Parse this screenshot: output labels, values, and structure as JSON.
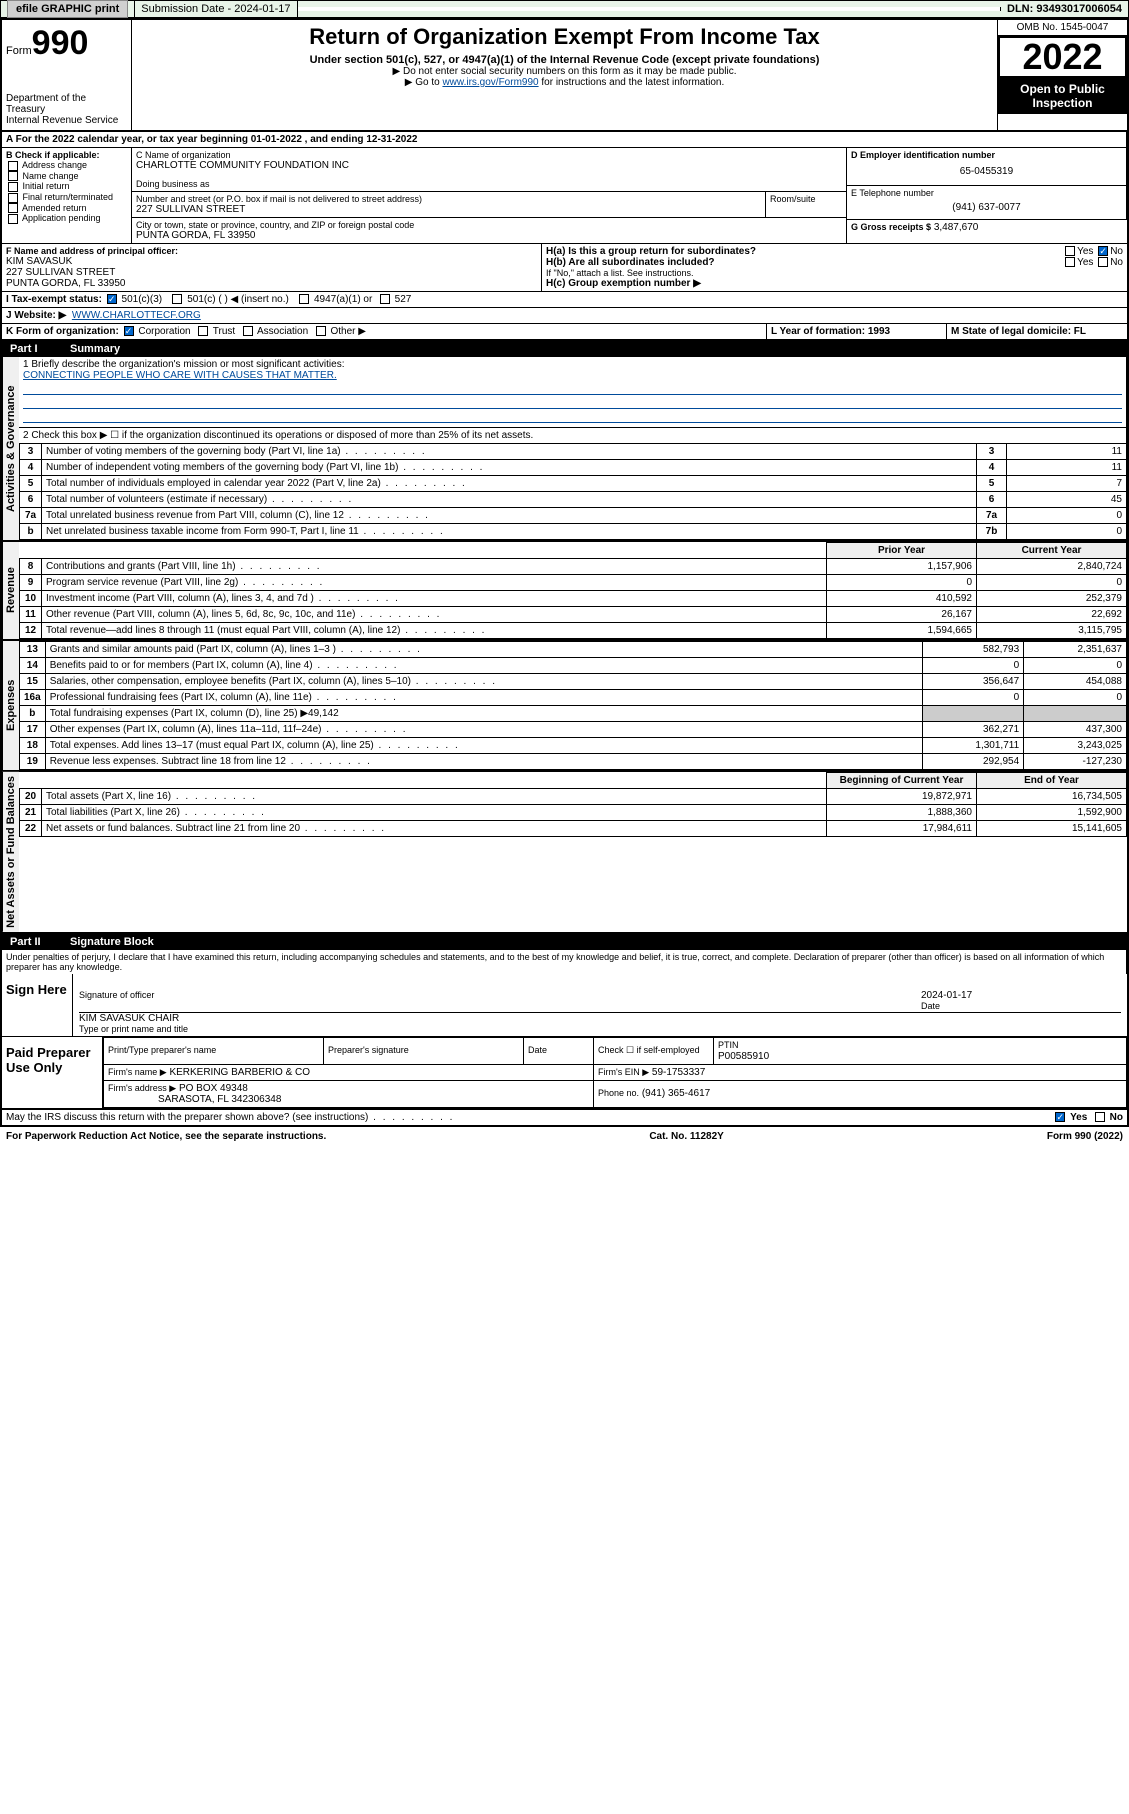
{
  "topbar": {
    "efile": "efile GRAPHIC print",
    "subdate_label": "Submission Date - 2024-01-17",
    "dln_label": "DLN: 93493017006054"
  },
  "header": {
    "form_prefix": "Form",
    "form_num": "990",
    "dept": "Department of the Treasury",
    "irs": "Internal Revenue Service",
    "title": "Return of Organization Exempt From Income Tax",
    "subtitle": "Under section 501(c), 527, or 4947(a)(1) of the Internal Revenue Code (except private foundations)",
    "note1": "▶ Do not enter social security numbers on this form as it may be made public.",
    "note2_pre": "▶ Go to ",
    "note2_link": "www.irs.gov/Form990",
    "note2_post": " for instructions and the latest information.",
    "omb": "OMB No. 1545-0047",
    "year": "2022",
    "inspect": "Open to Public Inspection"
  },
  "sectionA": {
    "a_line": "A For the 2022 calendar year, or tax year beginning 01-01-2022    , and ending 12-31-2022",
    "b_label": "B Check if applicable:",
    "b_items": [
      "Address change",
      "Name change",
      "Initial return",
      "Final return/terminated",
      "Amended return",
      "Application pending"
    ],
    "c_label": "C Name of organization",
    "c_name": "CHARLOTTE COMMUNITY FOUNDATION INC",
    "dba_label": "Doing business as",
    "addr_label": "Number and street (or P.O. box if mail is not delivered to street address)",
    "room_label": "Room/suite",
    "addr": "227 SULLIVAN STREET",
    "city_label": "City or town, state or province, country, and ZIP or foreign postal code",
    "city": "PUNTA GORDA, FL  33950",
    "d_label": "D Employer identification number",
    "d_ein": "65-0455319",
    "e_label": "E Telephone number",
    "e_phone": "(941) 637-0077",
    "g_label": "G Gross receipts $",
    "g_val": "3,487,670",
    "f_label": "F Name and address of principal officer:",
    "f_name": "KIM SAVASUK",
    "f_addr1": "227 SULLIVAN STREET",
    "f_addr2": "PUNTA GORDA, FL  33950",
    "ha_label": "H(a) Is this a group return for subordinates?",
    "ha_yes": "Yes",
    "ha_no": "No",
    "hb_label": "H(b) Are all subordinates included?",
    "hb_note": "If \"No,\" attach a list. See instructions.",
    "hc_label": "H(c) Group exemption number ▶",
    "i_label": "I    Tax-exempt status:",
    "i_501c3": "501(c)(3)",
    "i_501c": "501(c) (  ) ◀ (insert no.)",
    "i_4947": "4947(a)(1) or",
    "i_527": "527",
    "j_label": "J    Website: ▶",
    "j_site": "WWW.CHARLOTTECF.ORG",
    "k_label": "K Form of organization:",
    "k_corp": "Corporation",
    "k_trust": "Trust",
    "k_assoc": "Association",
    "k_other": "Other ▶",
    "l_label": "L Year of formation: 1993",
    "m_label": "M State of legal domicile: FL"
  },
  "part1": {
    "title": "Part I",
    "heading": "Summary",
    "l1_label": "1  Briefly describe the organization's mission or most significant activities:",
    "l1_text": "CONNECTING PEOPLE WHO CARE WITH CAUSES THAT MATTER.",
    "l2": "2   Check this box ▶ ☐  if the organization discontinued its operations or disposed of more than 25% of its net assets.",
    "rows_top": [
      {
        "n": "3",
        "desc": "Number of voting members of the governing body (Part VI, line 1a)",
        "box": "3",
        "val": "11"
      },
      {
        "n": "4",
        "desc": "Number of independent voting members of the governing body (Part VI, line 1b)",
        "box": "4",
        "val": "11"
      },
      {
        "n": "5",
        "desc": "Total number of individuals employed in calendar year 2022 (Part V, line 2a)",
        "box": "5",
        "val": "7"
      },
      {
        "n": "6",
        "desc": "Total number of volunteers (estimate if necessary)",
        "box": "6",
        "val": "45"
      },
      {
        "n": "7a",
        "desc": "Total unrelated business revenue from Part VIII, column (C), line 12",
        "box": "7a",
        "val": "0"
      },
      {
        "n": "b",
        "desc": "Net unrelated business taxable income from Form 990-T, Part I, line 11",
        "box": "7b",
        "val": "0"
      }
    ],
    "col_prior": "Prior Year",
    "col_curr": "Current Year",
    "revenue": [
      {
        "n": "8",
        "desc": "Contributions and grants (Part VIII, line 1h)",
        "p": "1,157,906",
        "c": "2,840,724"
      },
      {
        "n": "9",
        "desc": "Program service revenue (Part VIII, line 2g)",
        "p": "0",
        "c": "0"
      },
      {
        "n": "10",
        "desc": "Investment income (Part VIII, column (A), lines 3, 4, and 7d )",
        "p": "410,592",
        "c": "252,379"
      },
      {
        "n": "11",
        "desc": "Other revenue (Part VIII, column (A), lines 5, 6d, 8c, 9c, 10c, and 11e)",
        "p": "26,167",
        "c": "22,692"
      },
      {
        "n": "12",
        "desc": "Total revenue—add lines 8 through 11 (must equal Part VIII, column (A), line 12)",
        "p": "1,594,665",
        "c": "3,115,795"
      }
    ],
    "expenses": [
      {
        "n": "13",
        "desc": "Grants and similar amounts paid (Part IX, column (A), lines 1–3 )",
        "p": "582,793",
        "c": "2,351,637"
      },
      {
        "n": "14",
        "desc": "Benefits paid to or for members (Part IX, column (A), line 4)",
        "p": "0",
        "c": "0"
      },
      {
        "n": "15",
        "desc": "Salaries, other compensation, employee benefits (Part IX, column (A), lines 5–10)",
        "p": "356,647",
        "c": "454,088"
      },
      {
        "n": "16a",
        "desc": "Professional fundraising fees (Part IX, column (A), line 11e)",
        "p": "0",
        "c": "0"
      },
      {
        "n": "b",
        "desc": "Total fundraising expenses (Part IX, column (D), line 25) ▶49,142",
        "p": "",
        "c": ""
      },
      {
        "n": "17",
        "desc": "Other expenses (Part IX, column (A), lines 11a–11d, 11f–24e)",
        "p": "362,271",
        "c": "437,300"
      },
      {
        "n": "18",
        "desc": "Total expenses. Add lines 13–17 (must equal Part IX, column (A), line 25)",
        "p": "1,301,711",
        "c": "3,243,025"
      },
      {
        "n": "19",
        "desc": "Revenue less expenses. Subtract line 18 from line 12",
        "p": "292,954",
        "c": "-127,230"
      }
    ],
    "col_beg": "Beginning of Current Year",
    "col_end": "End of Year",
    "netassets": [
      {
        "n": "20",
        "desc": "Total assets (Part X, line 16)",
        "p": "19,872,971",
        "c": "16,734,505"
      },
      {
        "n": "21",
        "desc": "Total liabilities (Part X, line 26)",
        "p": "1,888,360",
        "c": "1,592,900"
      },
      {
        "n": "22",
        "desc": "Net assets or fund balances. Subtract line 21 from line 20",
        "p": "17,984,611",
        "c": "15,141,605"
      }
    ],
    "vtab_gov": "Activities & Governance",
    "vtab_rev": "Revenue",
    "vtab_exp": "Expenses",
    "vtab_net": "Net Assets or Fund Balances"
  },
  "part2": {
    "title": "Part II",
    "heading": "Signature Block",
    "perjury": "Under penalties of perjury, I declare that I have examined this return, including accompanying schedules and statements, and to the best of my knowledge and belief, it is true, correct, and complete. Declaration of preparer (other than officer) is based on all information of which preparer has any knowledge.",
    "sign_here": "Sign Here",
    "sig_officer": "Signature of officer",
    "sig_date": "Date",
    "sig_datev": "2024-01-17",
    "officer_name": "KIM SAVASUK  CHAIR",
    "officer_type": "Type or print name and title",
    "paid": "Paid Preparer Use Only",
    "prep_name_label": "Print/Type preparer's name",
    "prep_sig_label": "Preparer's signature",
    "prep_date_label": "Date",
    "prep_check": "Check ☐ if self-employed",
    "ptin_label": "PTIN",
    "ptin": "P00585910",
    "firm_name_label": "Firm's name    ▶",
    "firm_name": "KERKERING BARBERIO & CO",
    "firm_ein_label": "Firm's EIN ▶",
    "firm_ein": "59-1753337",
    "firm_addr_label": "Firm's address ▶",
    "firm_addr1": "PO BOX 49348",
    "firm_addr2": "SARASOTA, FL  342306348",
    "firm_phone_label": "Phone no.",
    "firm_phone": "(941) 365-4617",
    "may_irs": "May the IRS discuss this return with the preparer shown above? (see instructions)",
    "may_yes": "Yes",
    "may_no": "No"
  },
  "footer": {
    "pra": "For Paperwork Reduction Act Notice, see the separate instructions.",
    "cat": "Cat. No. 11282Y",
    "form": "Form 990 (2022)"
  }
}
